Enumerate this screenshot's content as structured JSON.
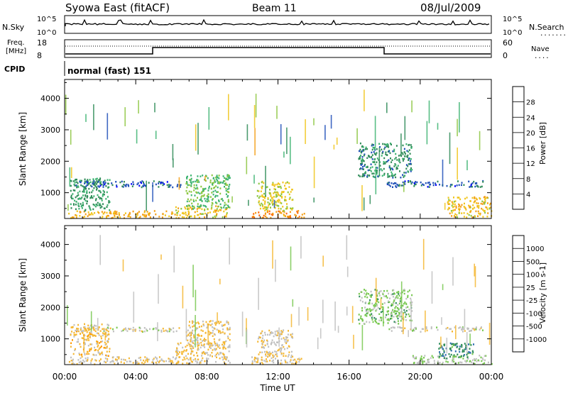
{
  "header": {
    "station": "Syowa East (fitACF)",
    "beam": "Beam 11",
    "date": "08/Jul/2009"
  },
  "noise_panel": {
    "left_label": "N.Sky",
    "right_label": "N.Search",
    "right_dots": "........",
    "left_ticks": [
      "10^5",
      "10^0"
    ],
    "right_ticks": [
      "10^5",
      "10^0"
    ]
  },
  "freq_panel": {
    "left_label_1": "Freq.",
    "left_label_2": "[MHz]",
    "right_label": "Nave",
    "right_dots": "....",
    "left_ticks": [
      "18",
      "8"
    ],
    "right_ticks": [
      "60",
      "0"
    ]
  },
  "cpid": {
    "label": "CPID",
    "mode": "normal (fast) 151"
  },
  "x_axis": {
    "label": "Time UT",
    "ticks": [
      "00:00",
      "04:00",
      "08:00",
      "12:00",
      "16:00",
      "20:00",
      "00:00"
    ]
  },
  "colors": {
    "power": [
      "#0000ff",
      "#1f4fb8",
      "#2e8b57",
      "#3cb371",
      "#8cc63f",
      "#f0c419",
      "#f39c12",
      "#ff6600",
      "#ff0000"
    ],
    "velocity": [
      "#ff0000",
      "#ff5a00",
      "#ff9a00",
      "#f5b731",
      "#c0c0c0",
      "#78c850",
      "#2e8b57",
      "#2f6fb0",
      "#2233cc"
    ]
  },
  "chart_data": [
    {
      "type": "heatmap",
      "title": "Power",
      "ylabel": "Slant Range [km]",
      "xlabel": "",
      "x_range_hours": [
        0,
        24
      ],
      "ylim": [
        180,
        4600
      ],
      "yticks": [
        1000,
        2000,
        3000,
        4000
      ],
      "colorbar": {
        "label": "Power [dB]",
        "ticks": [
          "4",
          "8",
          "12",
          "16",
          "20",
          "24",
          "28"
        ],
        "range": [
          0,
          32
        ]
      },
      "echo_regions": [
        {
          "t0": 0.2,
          "t1": 6.2,
          "r0": 220,
          "r1": 450,
          "value": 22
        },
        {
          "t0": 6.2,
          "t1": 9.3,
          "r0": 220,
          "r1": 600,
          "value": 20
        },
        {
          "t0": 10.5,
          "t1": 13.5,
          "r0": 220,
          "r1": 450,
          "value": 24
        },
        {
          "t0": 0.3,
          "t1": 2.5,
          "r0": 450,
          "r1": 1500,
          "value": 10
        },
        {
          "t0": 6.8,
          "t1": 9.3,
          "r0": 500,
          "r1": 1600,
          "value": 14
        },
        {
          "t0": 10.8,
          "t1": 12.8,
          "r0": 450,
          "r1": 1400,
          "value": 18
        },
        {
          "t0": 0.5,
          "t1": 6.5,
          "r0": 1200,
          "r1": 1400,
          "value": 6
        },
        {
          "t0": 18.0,
          "t1": 23.5,
          "r0": 1200,
          "r1": 1400,
          "value": 6
        },
        {
          "t0": 21.5,
          "t1": 24.0,
          "r0": 220,
          "r1": 900,
          "value": 20
        },
        {
          "t0": 16.5,
          "t1": 19.5,
          "r0": 1500,
          "r1": 2600,
          "value": 9
        }
      ]
    },
    {
      "type": "heatmap",
      "title": "Velocity",
      "ylabel": "Slant Range [km]",
      "xlabel": "Time UT",
      "x_range_hours": [
        0,
        24
      ],
      "ylim": [
        180,
        4600
      ],
      "yticks": [
        1000,
        2000,
        3000,
        4000
      ],
      "colorbar": {
        "label": "Velocity [m s-1]",
        "ticks": [
          "-1000",
          "-500",
          "-100",
          "-25",
          "25",
          "100",
          "500",
          "1000"
        ],
        "range": [
          -1500,
          1500
        ]
      },
      "echo_regions": [
        {
          "t0": 0.2,
          "t1": 6.2,
          "r0": 220,
          "r1": 450,
          "value": -150
        },
        {
          "t0": 6.2,
          "t1": 9.3,
          "r0": 220,
          "r1": 900,
          "value": -200
        },
        {
          "t0": 10.5,
          "t1": 13.5,
          "r0": 220,
          "r1": 450,
          "value": -150
        },
        {
          "t0": 0.3,
          "t1": 2.5,
          "r0": 450,
          "r1": 1500,
          "value": -300
        },
        {
          "t0": 6.8,
          "t1": 9.3,
          "r0": 800,
          "r1": 1600,
          "value": -200
        },
        {
          "t0": 10.8,
          "t1": 12.8,
          "r0": 450,
          "r1": 1300,
          "value": -120
        },
        {
          "t0": 0.5,
          "t1": 6.5,
          "r0": 1250,
          "r1": 1400,
          "value": 0
        },
        {
          "t0": 18.0,
          "t1": 23.5,
          "r0": 1250,
          "r1": 1400,
          "value": 0
        },
        {
          "t0": 19.5,
          "t1": 24.0,
          "r0": 220,
          "r1": 500,
          "value": 150
        },
        {
          "t0": 16.5,
          "t1": 19.5,
          "r0": 1500,
          "r1": 2600,
          "value": 300
        },
        {
          "t0": 21.0,
          "t1": 23.0,
          "r0": 400,
          "r1": 900,
          "value": 700
        }
      ]
    }
  ]
}
